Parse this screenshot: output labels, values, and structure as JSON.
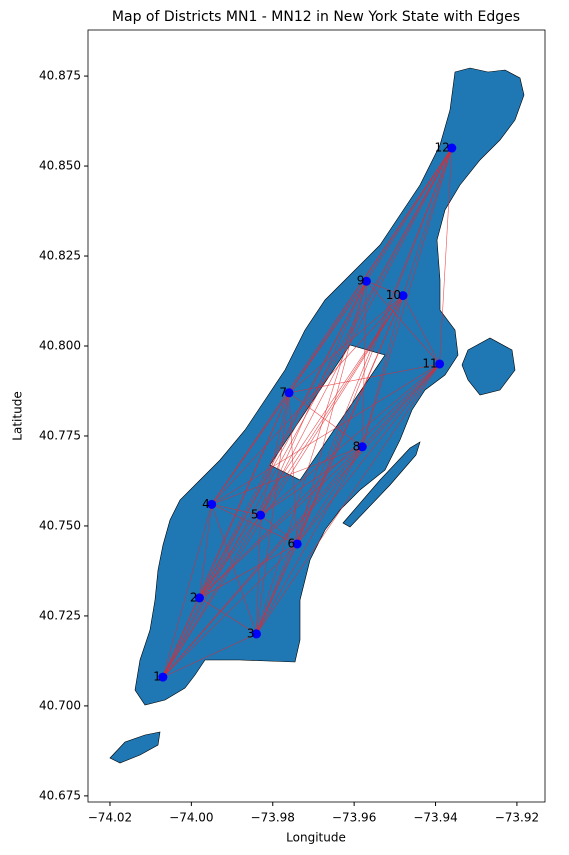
{
  "chart_data": {
    "type": "scatter",
    "title": "Map of Districts MN1 - MN12 in New York State with Edges",
    "x_label": "Longitude",
    "y_label": "Latitude",
    "labels": [
      "1",
      "2",
      "3",
      "4",
      "5",
      "6",
      "7",
      "8",
      "9",
      "10",
      "11",
      "12"
    ],
    "x": [
      -74.007,
      -73.998,
      -73.984,
      -73.995,
      -73.983,
      -73.974,
      -73.976,
      -73.958,
      -73.957,
      -73.948,
      -73.939,
      -73.936
    ],
    "y": [
      40.708,
      40.73,
      40.72,
      40.756,
      40.753,
      40.745,
      40.787,
      40.772,
      40.818,
      40.814,
      40.795,
      40.855
    ],
    "color": "#0000ff",
    "edge_color": "#e8262b",
    "map_color": "#1f77b4",
    "xlim": [
      -74.0254,
      -73.9131
    ],
    "ylim": [
      40.6733,
      40.8878
    ],
    "xticks": [
      {
        "value": -74.02,
        "label": "−74.02"
      },
      {
        "value": -74.0,
        "label": "−74.00"
      },
      {
        "value": -73.98,
        "label": "−73.98"
      },
      {
        "value": -73.96,
        "label": "−73.96"
      },
      {
        "value": -73.94,
        "label": "−73.94"
      },
      {
        "value": -73.92,
        "label": "−73.92"
      }
    ],
    "yticks": [
      40.675,
      {
        "value": 40.7,
        "label": "40.700"
      },
      40.725,
      {
        "value": 40.75,
        "label": "40.750"
      },
      40.775,
      {
        "value": 40.8,
        "label": "40.800"
      },
      40.825,
      {
        "value": 40.85,
        "label": "40.850"
      },
      40.875
    ]
  }
}
